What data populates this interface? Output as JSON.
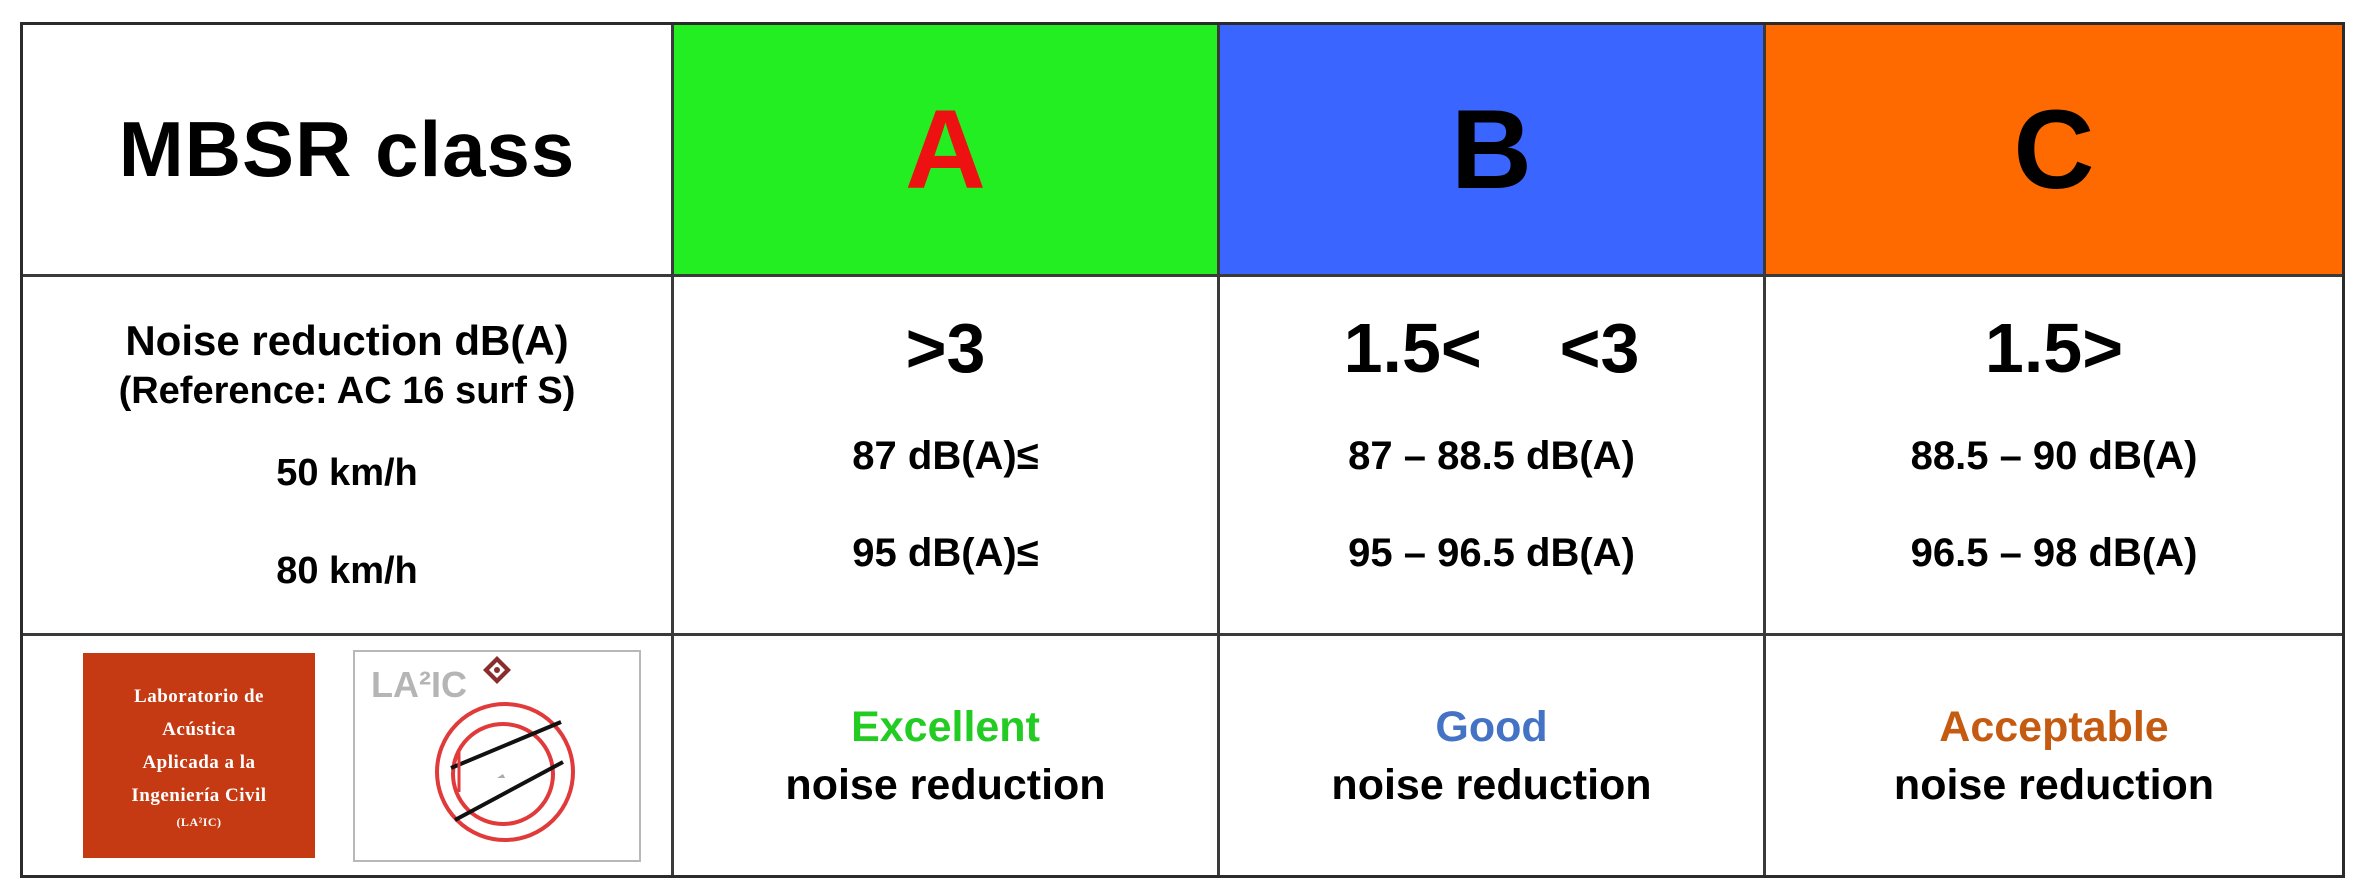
{
  "header": {
    "title": "MBSR class",
    "classes": [
      {
        "letter": "A",
        "bg_color": "#22ee22",
        "letter_color": "#ee1111"
      },
      {
        "letter": "B",
        "bg_color": "#3a66ff",
        "letter_color": "#000000"
      },
      {
        "letter": "C",
        "bg_color": "#ff6a00",
        "letter_color": "#000000"
      }
    ]
  },
  "noise": {
    "label": "Noise reduction dB(A)",
    "reference": "(Reference: AC 16 surf S)",
    "speed_50": "50 km/h",
    "speed_80": "80 km/h",
    "classes": [
      {
        "threshold": ">3",
        "range_50": "87 dB(A)≤",
        "range_80": "95 dB(A)≤"
      },
      {
        "threshold": "1.5<    <3",
        "range_50": "87 – 88.5 dB(A)",
        "range_80": "95 – 96.5 dB(A)"
      },
      {
        "threshold": "1.5>",
        "range_50": "88.5 – 90 dB(A)",
        "range_80": "96.5 – 98 dB(A)"
      }
    ]
  },
  "logo": {
    "line1": "Laboratorio de",
    "line2": "Acústica",
    "line3": "Aplicada a la",
    "line4": "Ingeniería Civil",
    "line5": "(LA²IC)",
    "mark_text": "LA²IC"
  },
  "ratings": [
    {
      "quality": "Excellent",
      "color": "#22cc22",
      "suffix": "noise reduction"
    },
    {
      "quality": "Good",
      "color": "#4472c4",
      "suffix": "noise reduction"
    },
    {
      "quality": "Acceptable",
      "color": "#c55a11",
      "suffix": "noise reduction"
    }
  ]
}
